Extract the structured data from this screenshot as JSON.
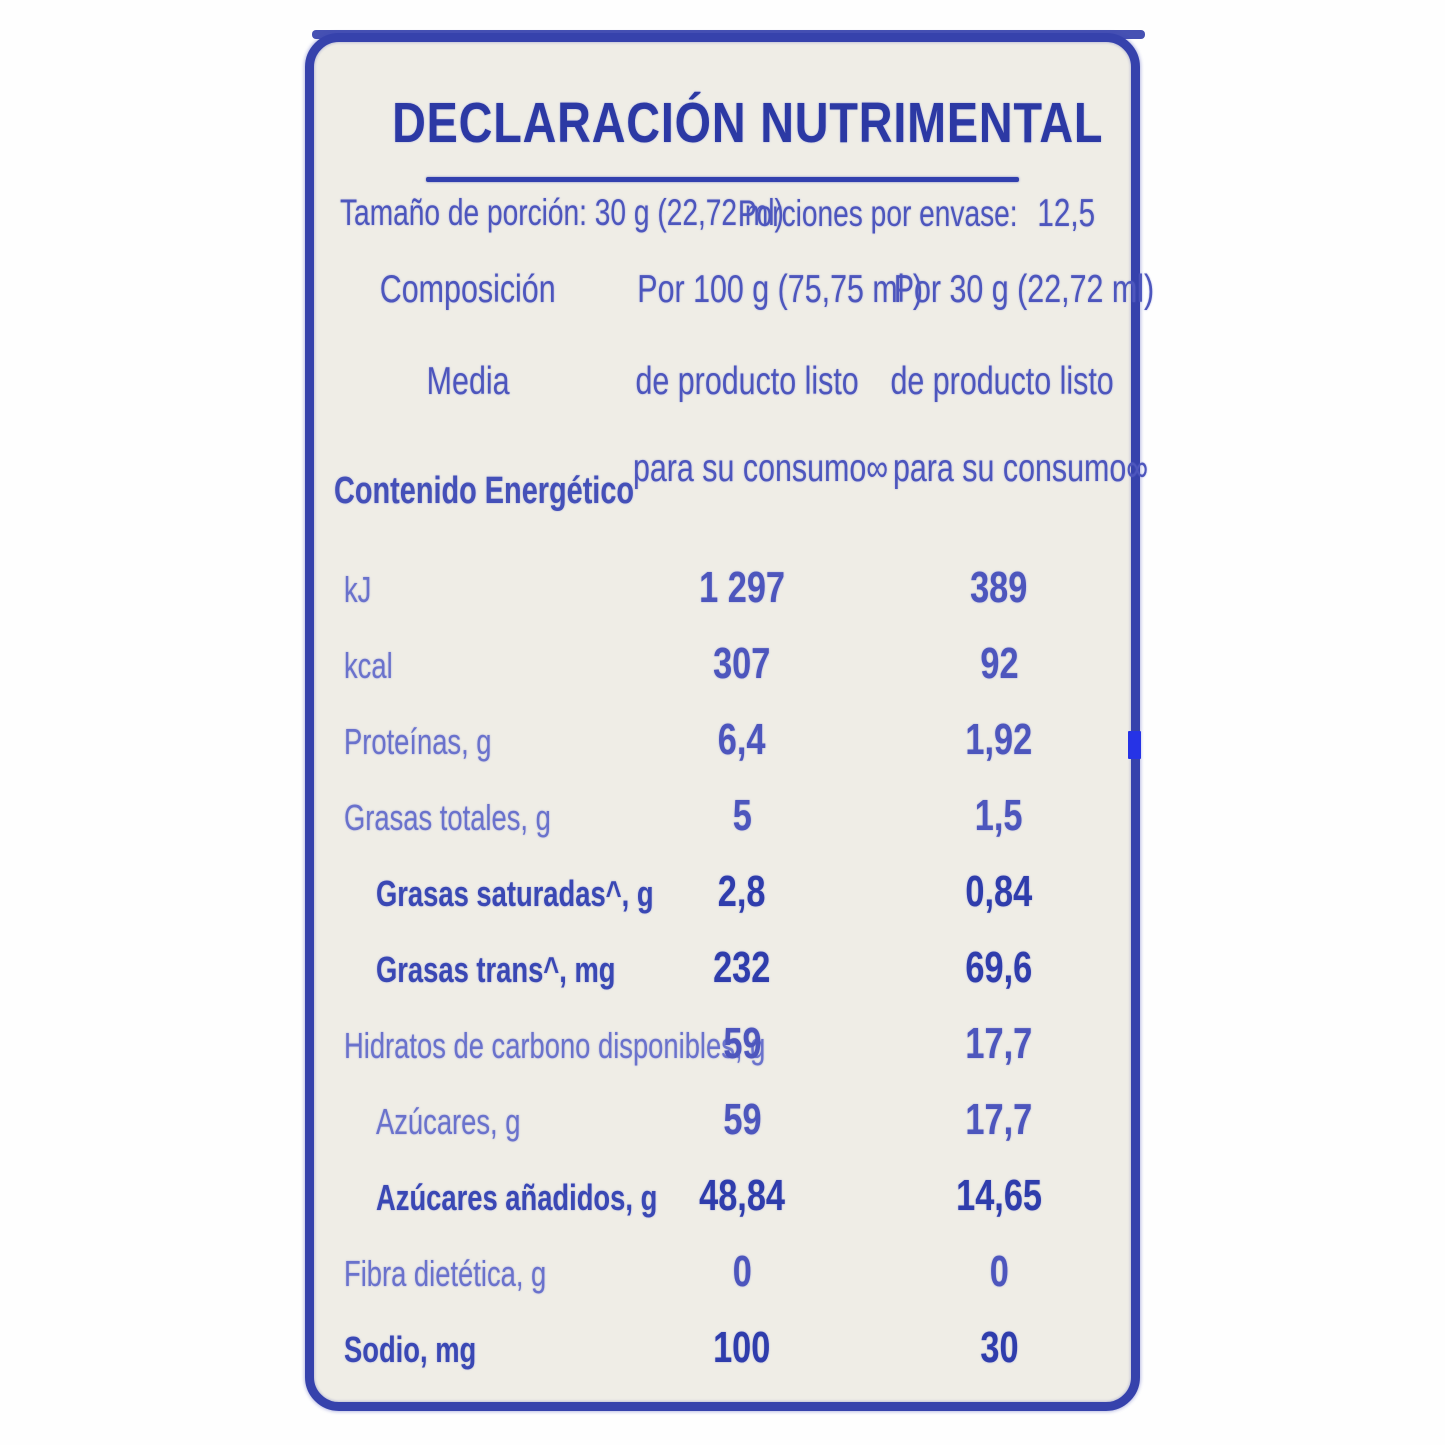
{
  "title": "DECLARACIÓN NUTRIMENTAL",
  "serving": {
    "portion": "Tamaño de porción: 30 g (22,72 ml)",
    "per_container_label": "Porciones por envase:",
    "per_container_value": "12,5"
  },
  "table": {
    "col1_header": [
      "Composición",
      "Media"
    ],
    "col2_header": [
      "Por 100 g (75,75 ml )",
      "de producto listo",
      "para su consumo∞"
    ],
    "col3_header": [
      "Por 30 g (22,72 ml)",
      "de producto listo",
      "para su consumo∞"
    ],
    "section_header": "Contenido Energético",
    "rows": [
      {
        "label": "kJ",
        "per100": "1 297",
        "per30": "389",
        "indent": false,
        "emphasis": false
      },
      {
        "label": "kcal",
        "per100": "307",
        "per30": "92",
        "indent": false,
        "emphasis": false
      },
      {
        "label": "Proteínas, g",
        "per100": "6,4",
        "per30": "1,92",
        "indent": false,
        "emphasis": false
      },
      {
        "label": "Grasas totales, g",
        "per100": "5",
        "per30": "1,5",
        "indent": false,
        "emphasis": false
      },
      {
        "label": "Grasas saturadas^, g",
        "per100": "2,8",
        "per30": "0,84",
        "indent": true,
        "emphasis": true
      },
      {
        "label": "Grasas trans^, mg",
        "per100": "232",
        "per30": "69,6",
        "indent": true,
        "emphasis": true
      },
      {
        "label": "Hidratos de carbono disponibles, g",
        "per100": "59",
        "per30": "17,7",
        "indent": false,
        "emphasis": false
      },
      {
        "label": "Azúcares, g",
        "per100": "59",
        "per30": "17,7",
        "indent": true,
        "emphasis": false
      },
      {
        "label": "Azúcares añadidos, g",
        "per100": "48,84",
        "per30": "14,65",
        "indent": true,
        "emphasis": true
      },
      {
        "label": "Fibra dietética, g",
        "per100": "0",
        "per30": "0",
        "indent": false,
        "emphasis": false
      },
      {
        "label": "Sodio, mg",
        "per100": "100",
        "per30": "30",
        "indent": false,
        "emphasis": true
      }
    ]
  },
  "colors": {
    "border_blue": "#3642ac",
    "title_ink": "#2c39a4",
    "light_ink": "#6a72cc",
    "value_ink": "#4d56bd",
    "emphasis_ink": "#2f3dac",
    "label_background": "#efede6",
    "side_tick_blue": "#2633e6"
  }
}
